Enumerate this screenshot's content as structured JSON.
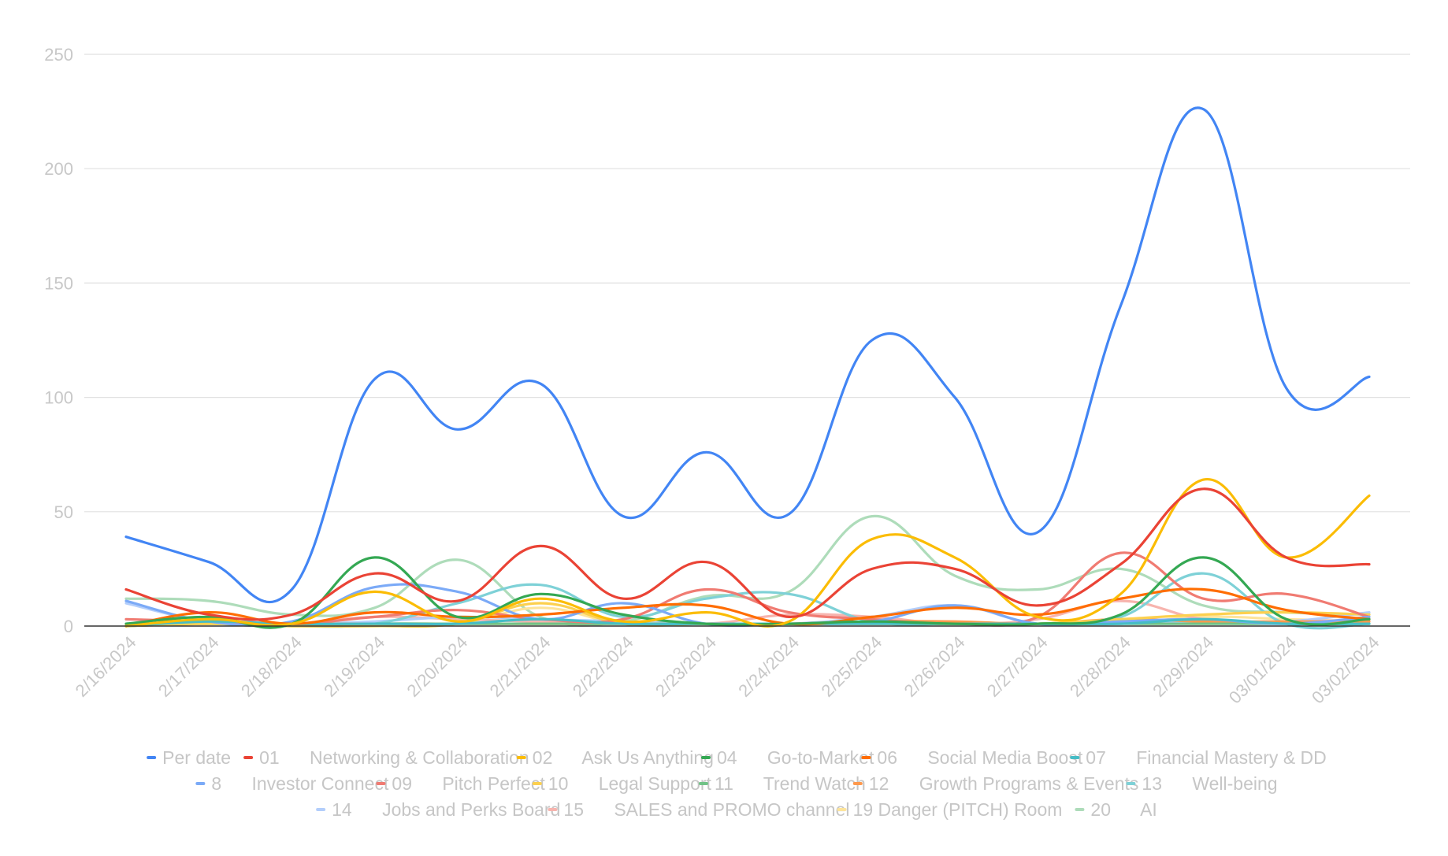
{
  "chart_data": {
    "type": "line",
    "title": "",
    "xlabel": "",
    "ylabel": "",
    "ylim": [
      0,
      250
    ],
    "yticks": [
      0,
      50,
      100,
      150,
      200,
      250
    ],
    "grid": true,
    "legend_position": "bottom",
    "categories": [
      "2/16/2024",
      "2/17/2024",
      "2/18/2024",
      "2/19/2024",
      "2/20/2024",
      "2/21/2024",
      "2/22/2024",
      "2/23/2024",
      "2/24/2024",
      "2/25/2024",
      "2/26/2024",
      "2/27/2024",
      "2/28/2024",
      "2/29/2024",
      "03/01/2024",
      "03/02/2024"
    ],
    "series": [
      {
        "name": "Per date",
        "color": "#4285f4",
        "values": [
          39,
          28,
          16,
          108,
          86,
          106,
          48,
          76,
          49,
          125,
          100,
          41,
          140,
          226,
          104,
          109
        ]
      },
      {
        "name": "01      Networking & Collaboration",
        "color": "#ea4335",
        "values": [
          16,
          5,
          5,
          23,
          11,
          35,
          12,
          28,
          4,
          25,
          25,
          9,
          27,
          60,
          30,
          27
        ]
      },
      {
        "name": "02      Ask Us Anything",
        "color": "#fbbc04",
        "values": [
          0,
          3,
          1,
          15,
          2,
          12,
          2,
          6,
          2,
          38,
          30,
          4,
          14,
          64,
          30,
          57
        ]
      },
      {
        "name": "04      Go-to-Market",
        "color": "#34a853",
        "values": [
          1,
          4,
          1,
          30,
          4,
          14,
          5,
          1,
          1,
          2,
          1,
          1,
          5,
          30,
          3,
          3
        ]
      },
      {
        "name": "06      Social Media Boost",
        "color": "#ff6d01",
        "values": [
          0,
          6,
          1,
          6,
          4,
          5,
          8,
          9,
          1,
          4,
          8,
          5,
          12,
          16,
          7,
          3
        ]
      },
      {
        "name": "07      Financial Mastery & DD",
        "color": "#46bdc6",
        "values": [
          0,
          2,
          1,
          1,
          1,
          3,
          1,
          1,
          1,
          1,
          1,
          1,
          1,
          3,
          1,
          1
        ]
      },
      {
        "name": "8      Investor Connect",
        "color": "#7baaf7",
        "values": [
          11,
          2,
          2,
          17,
          15,
          3,
          10,
          1,
          1,
          2,
          9,
          1,
          2,
          3,
          1,
          4
        ]
      },
      {
        "name": "09      Pitch Perfect",
        "color": "#f07b72",
        "values": [
          3,
          2,
          1,
          4,
          7,
          3,
          3,
          16,
          6,
          3,
          1,
          4,
          32,
          12,
          14,
          4
        ]
      },
      {
        "name": "10      Legal Support",
        "color": "#fcd04f",
        "values": [
          0,
          1,
          0,
          0,
          1,
          10,
          1,
          1,
          1,
          1,
          1,
          1,
          3,
          5,
          6,
          5
        ]
      },
      {
        "name": "11      Trend Watch",
        "color": "#71c287",
        "values": [
          0,
          1,
          0,
          1,
          1,
          1,
          1,
          1,
          1,
          1,
          1,
          1,
          1,
          1,
          1,
          1
        ]
      },
      {
        "name": "12      Growth Programs & Events",
        "color": "#ff994d",
        "values": [
          0,
          1,
          1,
          1,
          1,
          1,
          1,
          1,
          1,
          2,
          2,
          1,
          3,
          2,
          2,
          2
        ]
      },
      {
        "name": "13      Well-being",
        "color": "#7ed1d7",
        "values": [
          0,
          1,
          0,
          1,
          10,
          18,
          4,
          12,
          14,
          2,
          1,
          1,
          4,
          23,
          1,
          1
        ]
      },
      {
        "name": "14      Jobs and Perks Board",
        "color": "#b3cefb",
        "values": [
          10,
          2,
          1,
          2,
          4,
          3,
          2,
          1,
          1,
          4,
          9,
          1,
          2,
          2,
          2,
          6
        ]
      },
      {
        "name": "15      SALES and PROMO channel",
        "color": "#f7b4ae",
        "values": [
          0,
          2,
          1,
          4,
          3,
          2,
          2,
          1,
          5,
          4,
          1,
          3,
          11,
          3,
          2,
          3
        ]
      },
      {
        "name": "19 Danger (PITCH) Room",
        "color": "#fde49b",
        "values": [
          0,
          1,
          0,
          1,
          1,
          8,
          1,
          1,
          1,
          1,
          1,
          1,
          1,
          4,
          3,
          2
        ]
      },
      {
        "name": "20      AI",
        "color": "#aedcba",
        "values": [
          12,
          11,
          5,
          8,
          29,
          4,
          2,
          13,
          15,
          48,
          22,
          16,
          25,
          9,
          6,
          5
        ]
      }
    ]
  }
}
